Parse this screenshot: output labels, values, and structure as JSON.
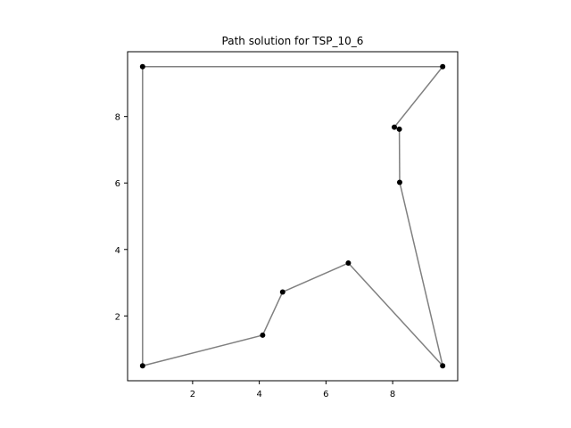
{
  "chart_data": {
    "type": "scatter",
    "title": "Path solution for TSP_10_6",
    "xlabel": "",
    "ylabel": "",
    "xlim": [
      0.05,
      9.95
    ],
    "ylim": [
      0.05,
      9.95
    ],
    "xticks": [
      2,
      4,
      6,
      8
    ],
    "yticks": [
      2,
      4,
      6,
      8
    ],
    "grid": false,
    "points": [
      {
        "x": 0.5,
        "y": 0.5
      },
      {
        "x": 4.1,
        "y": 1.42
      },
      {
        "x": 4.7,
        "y": 2.72
      },
      {
        "x": 6.67,
        "y": 3.59
      },
      {
        "x": 9.5,
        "y": 0.5
      },
      {
        "x": 8.21,
        "y": 6.02
      },
      {
        "x": 8.2,
        "y": 7.62
      },
      {
        "x": 8.05,
        "y": 7.68
      },
      {
        "x": 9.5,
        "y": 9.5
      },
      {
        "x": 0.5,
        "y": 9.5
      }
    ],
    "path_order": [
      0,
      1,
      2,
      3,
      4,
      5,
      6,
      7,
      8,
      9,
      0
    ],
    "colors": {
      "path": "#808080",
      "points": "#000000"
    }
  }
}
